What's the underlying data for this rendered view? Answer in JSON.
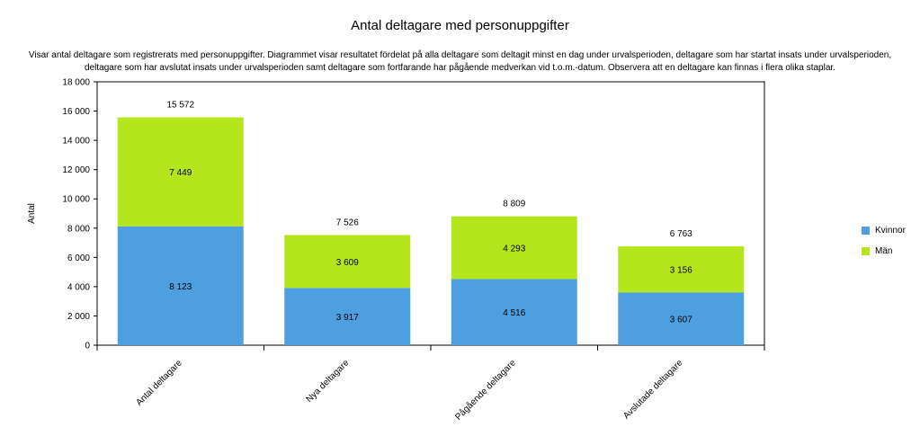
{
  "chart_data": {
    "type": "bar",
    "stacked": true,
    "title": "Antal deltagare med personuppgifter",
    "subtitle": "Visar antal deltagare som registrerats med personuppgifter. Diagrammet visar resultatet fördelat på alla deltagare som deltagit minst en dag under urvalsperioden, deltagare som har startat insats under urvalsperioden, deltagare som har avslutat insats under urvalsperioden samt deltagare som fortfarande har pågående medverkan vid t.o.m.-datum. Observera att en deltagare kan finnas i flera olika staplar.",
    "xlabel": "",
    "ylabel": "Antal",
    "ylim": [
      0,
      18000
    ],
    "yticks": [
      0,
      2000,
      4000,
      6000,
      8000,
      10000,
      12000,
      14000,
      16000,
      18000
    ],
    "ytick_labels": [
      "0",
      "2 000",
      "4 000",
      "6 000",
      "8 000",
      "10 000",
      "12 000",
      "14 000",
      "16 000",
      "18 000"
    ],
    "categories": [
      "Antal deltagare",
      "Nya deltagare",
      "Pågående deltagare",
      "Avslutade deltagare"
    ],
    "series": [
      {
        "name": "Kvinnor",
        "color": "#4d9fe0",
        "values": [
          8123,
          3917,
          4516,
          3607
        ],
        "labels": [
          "8 123",
          "3 917",
          "4 516",
          "3 607"
        ]
      },
      {
        "name": "Män",
        "color": "#b5e61d",
        "values": [
          7449,
          3609,
          4293,
          3156
        ],
        "labels": [
          "7 449",
          "3 609",
          "4 293",
          "3 156"
        ]
      }
    ],
    "totals": [
      15572,
      7526,
      8809,
      6763
    ],
    "total_labels": [
      "15 572",
      "7 526",
      "8 809",
      "6 763"
    ],
    "grid": false,
    "legend_position": "right"
  }
}
